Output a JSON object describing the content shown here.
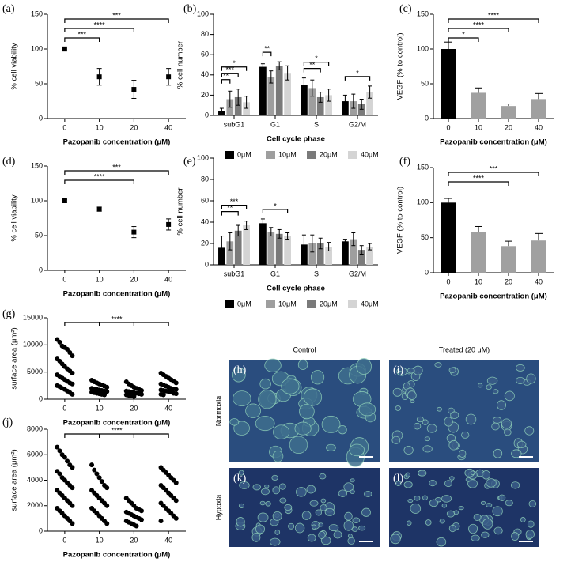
{
  "chart_data": [
    {
      "type": "point",
      "label": "(a)",
      "ylabel": "% cell viability",
      "xlabel": "Pazopanib concentration (μM)",
      "categories": [
        "0",
        "10",
        "20",
        "40"
      ],
      "values": [
        100,
        60,
        42,
        60
      ],
      "errors": [
        3,
        12,
        13,
        12
      ],
      "color": "#000000",
      "ylim": [
        0,
        150
      ],
      "yticks": [
        0,
        50,
        100,
        150
      ],
      "significance": [
        {
          "from": "0",
          "to": "10",
          "label": "***"
        },
        {
          "from": "0",
          "to": "20",
          "label": "****"
        },
        {
          "from": "0",
          "to": "40",
          "label": "***"
        }
      ]
    },
    {
      "type": "grouped_bar",
      "label": "(b)",
      "ylabel": "% cell number",
      "xlabel": "Cell cycle phase",
      "categories": [
        "subG1",
        "G1",
        "S",
        "G2/M"
      ],
      "series": [
        {
          "name": "0μM",
          "color": "#000000",
          "values": [
            4,
            48,
            30,
            14
          ],
          "errors": [
            3,
            3,
            7,
            6
          ]
        },
        {
          "name": "10μM",
          "color": "#9e9e9e",
          "values": [
            16,
            38,
            27,
            14
          ],
          "errors": [
            8,
            6,
            8,
            7
          ]
        },
        {
          "name": "20μM",
          "color": "#7a7a7a",
          "values": [
            18,
            49,
            18,
            11
          ],
          "errors": [
            8,
            4,
            5,
            5
          ]
        },
        {
          "name": "40μM",
          "color": "#d4d4d4",
          "values": [
            13,
            42,
            20,
            23
          ],
          "errors": [
            6,
            7,
            6,
            6
          ]
        }
      ],
      "ylim": [
        0,
        100
      ],
      "yticks": [
        0,
        20,
        40,
        60,
        80,
        100
      ],
      "significance": [
        {
          "category": "subG1",
          "from": "0μM",
          "to": "10μM",
          "label": "**"
        },
        {
          "category": "subG1",
          "from": "0μM",
          "to": "20μM",
          "label": "***"
        },
        {
          "category": "subG1",
          "from": "0μM",
          "to": "40μM",
          "label": "*"
        },
        {
          "category": "G1",
          "from": "0μM",
          "to": "10μM",
          "label": "**"
        },
        {
          "category": "S",
          "from": "0μM",
          "to": "20μM",
          "label": "**"
        },
        {
          "category": "S",
          "from": "0μM",
          "to": "40μM",
          "label": "*"
        },
        {
          "category": "G2/M",
          "from": "0μM",
          "to": "40μM",
          "label": "*"
        }
      ]
    },
    {
      "type": "bar",
      "label": "(c)",
      "ylabel": "VEGF (% to control)",
      "xlabel": "Pazopanib concentration (μM)",
      "categories": [
        "0",
        "10",
        "20",
        "40"
      ],
      "values": [
        100,
        37,
        18,
        28
      ],
      "errors": [
        10,
        7,
        3,
        8
      ],
      "colors": [
        "#000000",
        "#a0a0a0",
        "#a0a0a0",
        "#a0a0a0"
      ],
      "ylim": [
        0,
        150
      ],
      "yticks": [
        0,
        50,
        100,
        150
      ],
      "significance": [
        {
          "from": "0",
          "to": "10",
          "label": "*"
        },
        {
          "from": "0",
          "to": "20",
          "label": "****"
        },
        {
          "from": "0",
          "to": "40",
          "label": "****"
        }
      ]
    },
    {
      "type": "point",
      "label": "(d)",
      "ylabel": "% cell viability",
      "xlabel": "Pazopanib concentration (μM)",
      "categories": [
        "0",
        "10",
        "20",
        "40"
      ],
      "values": [
        100,
        88,
        55,
        66
      ],
      "errors": [
        2,
        3,
        8,
        8
      ],
      "color": "#000000",
      "ylim": [
        0,
        150
      ],
      "yticks": [
        0,
        50,
        100,
        150
      ],
      "significance": [
        {
          "from": "0",
          "to": "20",
          "label": "****"
        },
        {
          "from": "0",
          "to": "40",
          "label": "***"
        }
      ]
    },
    {
      "type": "grouped_bar",
      "label": "(e)",
      "ylabel": "% cell number",
      "xlabel": "Cell cycle phase",
      "categories": [
        "subG1",
        "G1",
        "S",
        "G2/M"
      ],
      "series": [
        {
          "name": "0μM",
          "color": "#000000",
          "values": [
            16,
            39,
            19,
            22
          ],
          "errors": [
            11,
            4,
            9,
            2
          ]
        },
        {
          "name": "10μM",
          "color": "#9e9e9e",
          "values": [
            22,
            31,
            20,
            24
          ],
          "errors": [
            8,
            4,
            8,
            6
          ]
        },
        {
          "name": "20μM",
          "color": "#7a7a7a",
          "values": [
            32,
            29,
            20,
            14
          ],
          "errors": [
            5,
            4,
            5,
            4
          ]
        },
        {
          "name": "40μM",
          "color": "#d4d4d4",
          "values": [
            37,
            27,
            17,
            17
          ],
          "errors": [
            4,
            3,
            4,
            3
          ]
        }
      ],
      "ylim": [
        0,
        100
      ],
      "yticks": [
        0,
        20,
        40,
        60,
        80,
        100
      ],
      "significance": [
        {
          "category": "subG1",
          "from": "0μM",
          "to": "20μM",
          "label": "**"
        },
        {
          "category": "subG1",
          "from": "0μM",
          "to": "40μM",
          "label": "***"
        },
        {
          "category": "G1",
          "from": "0μM",
          "to": "40μM",
          "label": "*"
        }
      ]
    },
    {
      "type": "bar",
      "label": "(f)",
      "ylabel": "VEGF (% to control)",
      "xlabel": "Pazopanib concentration (μM)",
      "categories": [
        "0",
        "10",
        "20",
        "40"
      ],
      "values": [
        100,
        58,
        38,
        46
      ],
      "errors": [
        6,
        8,
        7,
        10
      ],
      "colors": [
        "#000000",
        "#a0a0a0",
        "#a0a0a0",
        "#a0a0a0"
      ],
      "ylim": [
        0,
        150
      ],
      "yticks": [
        0,
        50,
        100,
        150
      ],
      "significance": [
        {
          "from": "0",
          "to": "20",
          "label": "****"
        },
        {
          "from": "0",
          "to": "40",
          "label": "***"
        }
      ]
    },
    {
      "type": "dot_scatter",
      "label": "(g)",
      "ylabel": "surface area (μm²)",
      "xlabel": "Pazopanib concentration (μM)",
      "categories": [
        "0",
        "10",
        "20",
        "40"
      ],
      "color": "#000000",
      "values": [
        [
          11000,
          10500,
          9800,
          9500,
          9200,
          8600,
          8000,
          7400,
          7000,
          6500,
          6000,
          5600,
          5200,
          4800,
          4500,
          4200,
          3900,
          3600,
          3300,
          3000,
          2800,
          2500,
          2300,
          2000,
          1800,
          1500,
          1200,
          900
        ],
        [
          3500,
          3200,
          3000,
          2800,
          2600,
          2400,
          2200,
          2000,
          1900,
          1800,
          1700,
          1600,
          1500,
          1400,
          1300,
          1200,
          1100,
          1000,
          900,
          800
        ],
        [
          3200,
          2800,
          2500,
          2200,
          2000,
          1800,
          1600,
          1500,
          1400,
          1300,
          1200,
          1100,
          1000,
          900,
          800,
          700,
          600,
          500
        ],
        [
          4800,
          4500,
          4200,
          3900,
          3600,
          3300,
          3000,
          2800,
          2600,
          2400,
          2200,
          2000,
          1900,
          1800,
          1700,
          1600,
          1500,
          1400,
          1300,
          1100,
          1000,
          900,
          800
        ]
      ],
      "ylim": [
        0,
        15000
      ],
      "yticks": [
        0,
        5000,
        10000,
        15000
      ],
      "significance": [
        {
          "from": "0",
          "to": "40",
          "label": "****"
        }
      ]
    },
    {
      "type": "dot_scatter",
      "label": "(j)",
      "ylabel": "surface area (μm²)",
      "xlabel": "Pazopanib concentration (μM)",
      "categories": [
        "0",
        "10",
        "20",
        "40"
      ],
      "color": "#000000",
      "values": [
        [
          6600,
          6300,
          6000,
          5800,
          5500,
          5200,
          5000,
          4700,
          4500,
          4200,
          4000,
          3800,
          3600,
          3400,
          3200,
          3000,
          2800,
          2600,
          2400,
          2200,
          2000,
          1800,
          1600,
          1400,
          1200,
          1000,
          800,
          600
        ],
        [
          5200,
          4800,
          4500,
          4200,
          3900,
          3600,
          3400,
          3200,
          3000,
          2800,
          2600,
          2400,
          2200,
          2000,
          1800,
          1600,
          1400,
          1200,
          1000,
          800,
          600
        ],
        [
          2600,
          2400,
          2200,
          2000,
          1800,
          1700,
          1600,
          1500,
          1400,
          1300,
          1200,
          1100,
          1000,
          900,
          800,
          700,
          600,
          500,
          400
        ],
        [
          5000,
          4800,
          4600,
          4400,
          4200,
          4000,
          3800,
          3600,
          3400,
          3200,
          3000,
          2800,
          2600,
          2400,
          2200,
          2000,
          1800,
          1600,
          1400,
          1200,
          1000,
          800
        ]
      ],
      "ylim": [
        0,
        8000
      ],
      "yticks": [
        0,
        2000,
        4000,
        6000,
        8000
      ],
      "significance": [
        {
          "from": "0",
          "to": "40",
          "label": "****"
        }
      ]
    }
  ],
  "micrographs": {
    "column_titles": [
      "Control",
      "Treated (20 μM)"
    ],
    "row_titles": [
      "Normoxia",
      "Hypoxia"
    ],
    "panel_labels": [
      "(h)",
      "(i)",
      "(k)",
      "(l)"
    ]
  }
}
